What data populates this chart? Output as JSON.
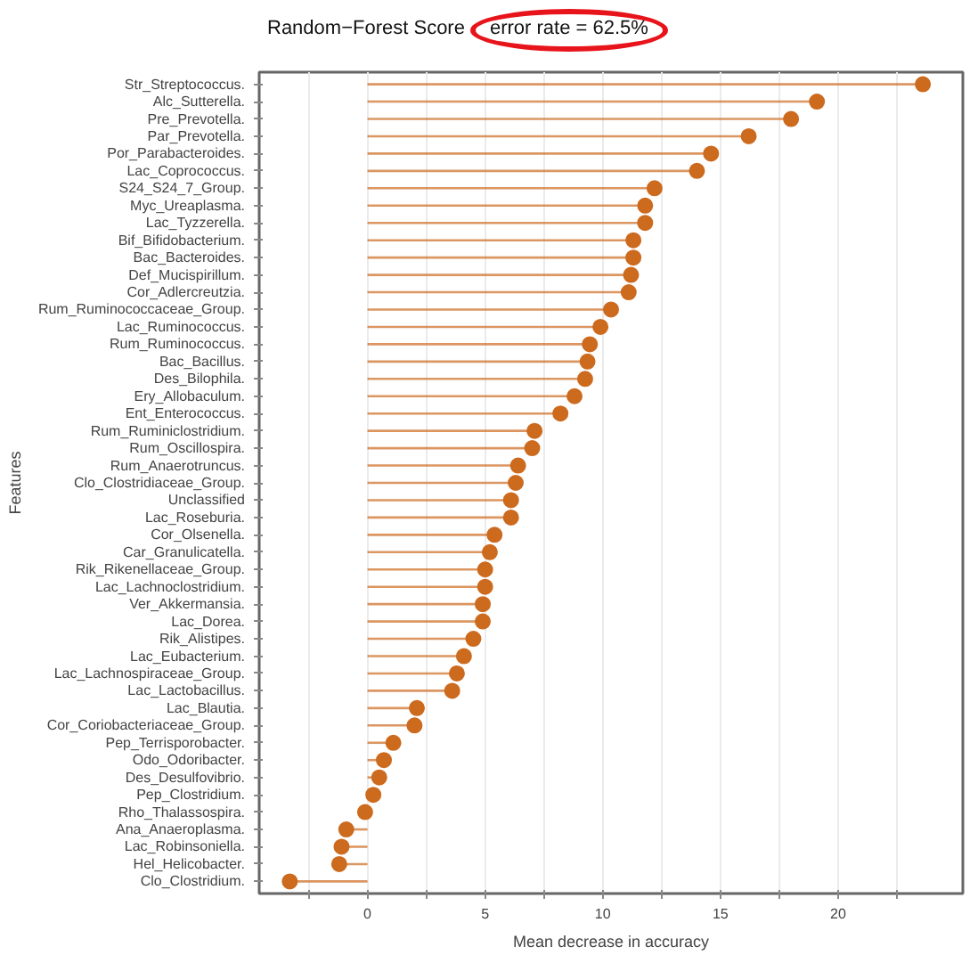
{
  "chart_data": {
    "type": "lollipop",
    "orientation": "horizontal",
    "title": "Random−Forest Score",
    "annotations": [
      "error rate = 62.5%"
    ],
    "xlabel": "Mean decrease in accuracy",
    "ylabel": "Features",
    "categories": [
      "Str_Streptococcus.",
      "Alc_Sutterella.",
      "Pre_Prevotella.",
      "Par_Prevotella.",
      "Por_Parabacteroides.",
      "Lac_Coprococcus.",
      "S24_S24_7_Group.",
      "Myc_Ureaplasma.",
      "Lac_Tyzzerella.",
      "Bif_Bifidobacterium.",
      "Bac_Bacteroides.",
      "Def_Mucispirillum.",
      "Cor_Adlercreutzia.",
      "Rum_Ruminococcaceae_Group.",
      "Lac_Ruminococcus.",
      "Rum_Ruminococcus.",
      "Bac_Bacillus.",
      "Des_Bilophila.",
      "Ery_Allobaculum.",
      "Ent_Enterococcus.",
      "Rum_Ruminiclostridium.",
      "Rum_Oscillospira.",
      "Rum_Anaerotruncus.",
      "Clo_Clostridiaceae_Group.",
      "Unclassified",
      "Lac_Roseburia.",
      "Cor_Olsenella.",
      "Car_Granulicatella.",
      "Rik_Rikenellaceae_Group.",
      "Lac_Lachnoclostridium.",
      "Ver_Akkermansia.",
      "Lac_Dorea.",
      "Rik_Alistipes.",
      "Lac_Eubacterium.",
      "Lac_Lachnospiraceae_Group.",
      "Lac_Lactobacillus.",
      "Lac_Blautia.",
      "Cor_Coriobacteriaceae_Group.",
      "Pep_Terrisporobacter.",
      "Odo_Odoribacter.",
      "Des_Desulfovibrio.",
      "Pep_Clostridium.",
      "Rho_Thalassospira.",
      "Ana_Anaeroplasma.",
      "Lac_Robinsoniella.",
      "Hel_Helicobacter.",
      "Clo_Clostridium."
    ],
    "series": [
      {
        "color": "#cc6a1e",
        "values": [
          23.6,
          19.1,
          18.0,
          16.2,
          14.6,
          14.0,
          12.2,
          11.8,
          11.8,
          11.3,
          11.3,
          11.2,
          11.1,
          10.35,
          9.9,
          9.45,
          9.35,
          9.25,
          8.8,
          8.2,
          7.1,
          7.0,
          6.4,
          6.3,
          6.1,
          6.1,
          5.4,
          5.2,
          5.0,
          5.0,
          4.9,
          4.9,
          4.5,
          4.1,
          3.8,
          3.6,
          2.1,
          2.0,
          1.1,
          0.7,
          0.5,
          0.25,
          -0.1,
          -0.9,
          -1.1,
          -1.2,
          -3.3
        ]
      }
    ],
    "xlim": [
      -4.6,
      25.3
    ],
    "xticks": [
      {
        "value": -2.5,
        "label": null
      },
      0,
      {
        "value": 2.5,
        "label": null
      },
      5,
      {
        "value": 7.5,
        "label": null
      },
      10,
      {
        "value": 12.5,
        "label": null
      },
      15,
      {
        "value": 17.5,
        "label": null
      },
      20,
      {
        "value": 22.5,
        "label": null
      }
    ],
    "grid": "x",
    "marker": "circle"
  }
}
